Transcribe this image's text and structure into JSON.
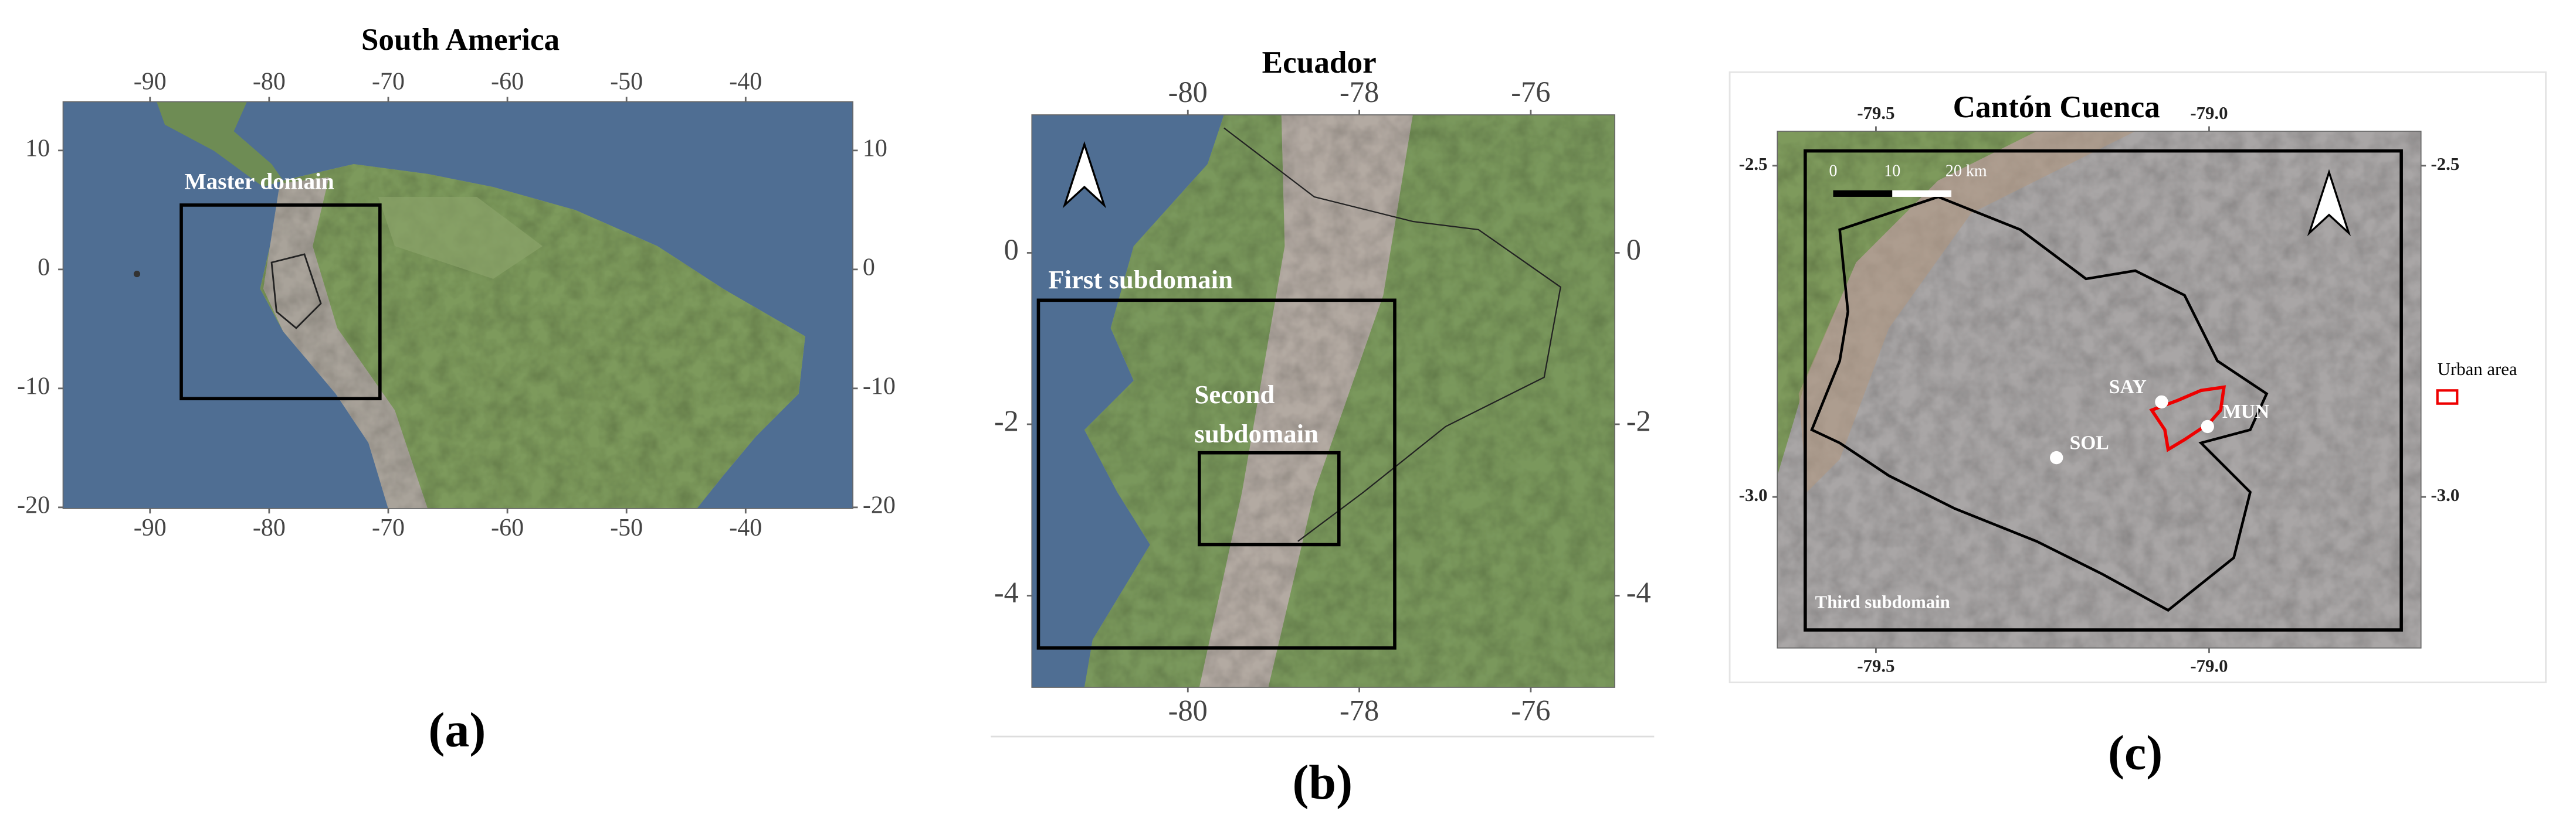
{
  "panels": [
    {
      "title": "South America",
      "xlim": [
        -97.3,
        -31
      ],
      "ylim": [
        -20.1,
        14.1
      ],
      "xticks": [
        -90,
        -80,
        -70,
        -60,
        -50,
        -40
      ],
      "yticks": [
        10,
        0,
        -10,
        -20
      ],
      "box_labels": [
        "Master domain"
      ],
      "panel_label": "(a)"
    },
    {
      "title": "Ecuador",
      "xlim": [
        -81.82,
        -75.02
      ],
      "ylim": [
        -5.07,
        1.61
      ],
      "xticks": [
        -80,
        -78,
        -76
      ],
      "yticks": [
        0,
        -2,
        -4
      ],
      "box_labels": [
        "First subdomain",
        "Second",
        "subdomain"
      ],
      "panel_label": "(b)"
    },
    {
      "title": "Cantón Cuenca",
      "xlim": [
        -79.648,
        -78.682
      ],
      "ylim": [
        -3.228,
        -2.448
      ],
      "xticks": [
        -79.5,
        {
          "value": -79,
          "label": "-79.0"
        }
      ],
      "yticks": [
        -2.5,
        {
          "value": -3,
          "label": "-3.0"
        }
      ],
      "box_labels": [
        "Third subdomain"
      ],
      "panel_label": "(c)",
      "scale_bar": [
        "0",
        "10",
        "20 km"
      ],
      "points": [
        "SAY",
        "SOL",
        "MUN"
      ],
      "legend": "Urban area"
    }
  ]
}
